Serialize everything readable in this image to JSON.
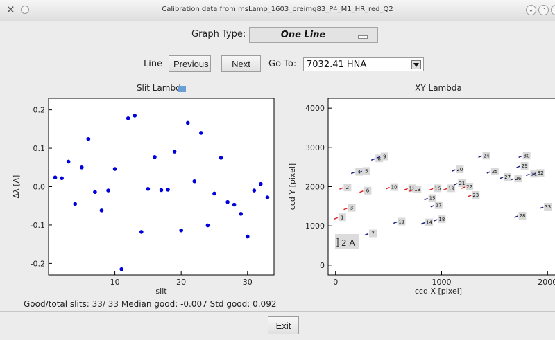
{
  "window": {
    "title": "Calibration data from msLamp_1603_preimg83_P4_M1_HR_red_Q2"
  },
  "controls": {
    "graph_type_label": "Graph Type:",
    "graph_type_value": "One Line",
    "line_label": "Line",
    "previous_label": "Previous",
    "next_label": "Next",
    "goto_label": "Go To:",
    "goto_value": "7032.41 HNA",
    "exit_label": "Exit"
  },
  "status": {
    "text": "Good/total slits:  33/ 33  Median good: -0.007  Std good: 0.092"
  },
  "chart_data": [
    {
      "type": "scatter",
      "title": "Slit Lambda",
      "xlabel": "slit",
      "ylabel": "Δλ [A]",
      "xlim": [
        0,
        34
      ],
      "ylim": [
        -0.23,
        0.23
      ],
      "xticks": [
        10,
        20,
        30
      ],
      "yticks": [
        -0.2,
        -0.1,
        0.0,
        0.1,
        0.2
      ],
      "ytick_labels": [
        "-0.2",
        "-0.1",
        "0.0",
        "0.1",
        "0.2"
      ],
      "grid": false,
      "color": "#0000dd",
      "points": [
        [
          1,
          0.024
        ],
        [
          2,
          0.022
        ],
        [
          3,
          0.065
        ],
        [
          4,
          -0.045
        ],
        [
          5,
          0.05
        ],
        [
          6,
          0.124
        ],
        [
          7,
          -0.014
        ],
        [
          8,
          -0.062
        ],
        [
          9,
          -0.01
        ],
        [
          10,
          0.046
        ],
        [
          11,
          -0.215
        ],
        [
          12,
          0.178
        ],
        [
          13,
          0.185
        ],
        [
          14,
          -0.118
        ],
        [
          15,
          -0.006
        ],
        [
          16,
          0.077
        ],
        [
          17,
          -0.009
        ],
        [
          18,
          -0.008
        ],
        [
          19,
          0.091
        ],
        [
          20,
          -0.114
        ],
        [
          21,
          0.166
        ],
        [
          22,
          0.014
        ],
        [
          23,
          0.14
        ],
        [
          24,
          -0.101
        ],
        [
          25,
          -0.018
        ],
        [
          26,
          0.075
        ],
        [
          27,
          -0.04
        ],
        [
          28,
          -0.047
        ],
        [
          29,
          -0.071
        ],
        [
          30,
          -0.13
        ],
        [
          31,
          -0.01
        ],
        [
          32,
          0.007
        ],
        [
          33,
          -0.028
        ]
      ]
    },
    {
      "type": "scatter",
      "title": "XY Lambda",
      "xlabel": "ccd X [pixel]",
      "ylabel": "ccd Y [pixel]",
      "xlim": [
        -70,
        2070
      ],
      "ylim": [
        -250,
        4250
      ],
      "xticks": [
        0,
        1000,
        2000
      ],
      "yticks": [
        0,
        1000,
        2000,
        3000,
        4000
      ],
      "grid": false,
      "scale_label": "2 A",
      "points": [
        {
          "id": "1",
          "x": 20,
          "y": 1210,
          "color": "red"
        },
        {
          "id": "2",
          "x": 70,
          "y": 1970,
          "color": "red"
        },
        {
          "id": "3",
          "x": 110,
          "y": 1450,
          "color": "red"
        },
        {
          "id": "4",
          "x": 180,
          "y": 2370,
          "color": "navy"
        },
        {
          "id": "5",
          "x": 250,
          "y": 2390,
          "color": "navy"
        },
        {
          "id": "6",
          "x": 260,
          "y": 1890,
          "color": "red"
        },
        {
          "id": "7",
          "x": 310,
          "y": 800,
          "color": "navy"
        },
        {
          "id": "8",
          "x": 370,
          "y": 2710,
          "color": "navy"
        },
        {
          "id": "9",
          "x": 420,
          "y": 2760,
          "color": "navy"
        },
        {
          "id": "10",
          "x": 510,
          "y": 1980,
          "color": "red"
        },
        {
          "id": "11",
          "x": 580,
          "y": 1100,
          "color": "navy"
        },
        {
          "id": "12",
          "x": 680,
          "y": 1950,
          "color": "red"
        },
        {
          "id": "13",
          "x": 730,
          "y": 1920,
          "color": "red"
        },
        {
          "id": "14",
          "x": 840,
          "y": 1080,
          "color": "navy"
        },
        {
          "id": "15",
          "x": 870,
          "y": 1700,
          "color": "navy"
        },
        {
          "id": "16",
          "x": 920,
          "y": 1950,
          "color": "red"
        },
        {
          "id": "17",
          "x": 930,
          "y": 1520,
          "color": "navy"
        },
        {
          "id": "18",
          "x": 960,
          "y": 1160,
          "color": "navy"
        },
        {
          "id": "19",
          "x": 1050,
          "y": 1950,
          "color": "red"
        },
        {
          "id": "20",
          "x": 1130,
          "y": 2430,
          "color": "navy"
        },
        {
          "id": "21",
          "x": 1150,
          "y": 2080,
          "color": "navy"
        },
        {
          "id": "22",
          "x": 1220,
          "y": 1990,
          "color": "red"
        },
        {
          "id": "23",
          "x": 1280,
          "y": 1780,
          "color": "red"
        },
        {
          "id": "24",
          "x": 1380,
          "y": 2780,
          "color": "navy"
        },
        {
          "id": "25",
          "x": 1460,
          "y": 2380,
          "color": "navy"
        },
        {
          "id": "26",
          "x": 1680,
          "y": 2200,
          "color": "navy"
        },
        {
          "id": "27",
          "x": 1580,
          "y": 2240,
          "color": "navy"
        },
        {
          "id": "28",
          "x": 1720,
          "y": 1250,
          "color": "navy"
        },
        {
          "id": "29",
          "x": 1740,
          "y": 2520,
          "color": "navy"
        },
        {
          "id": "30",
          "x": 1760,
          "y": 2780,
          "color": "navy"
        },
        {
          "id": "31",
          "x": 1830,
          "y": 2320,
          "color": "navy"
        },
        {
          "id": "32",
          "x": 1890,
          "y": 2340,
          "color": "navy"
        },
        {
          "id": "33",
          "x": 1960,
          "y": 1480,
          "color": "navy"
        }
      ]
    }
  ]
}
